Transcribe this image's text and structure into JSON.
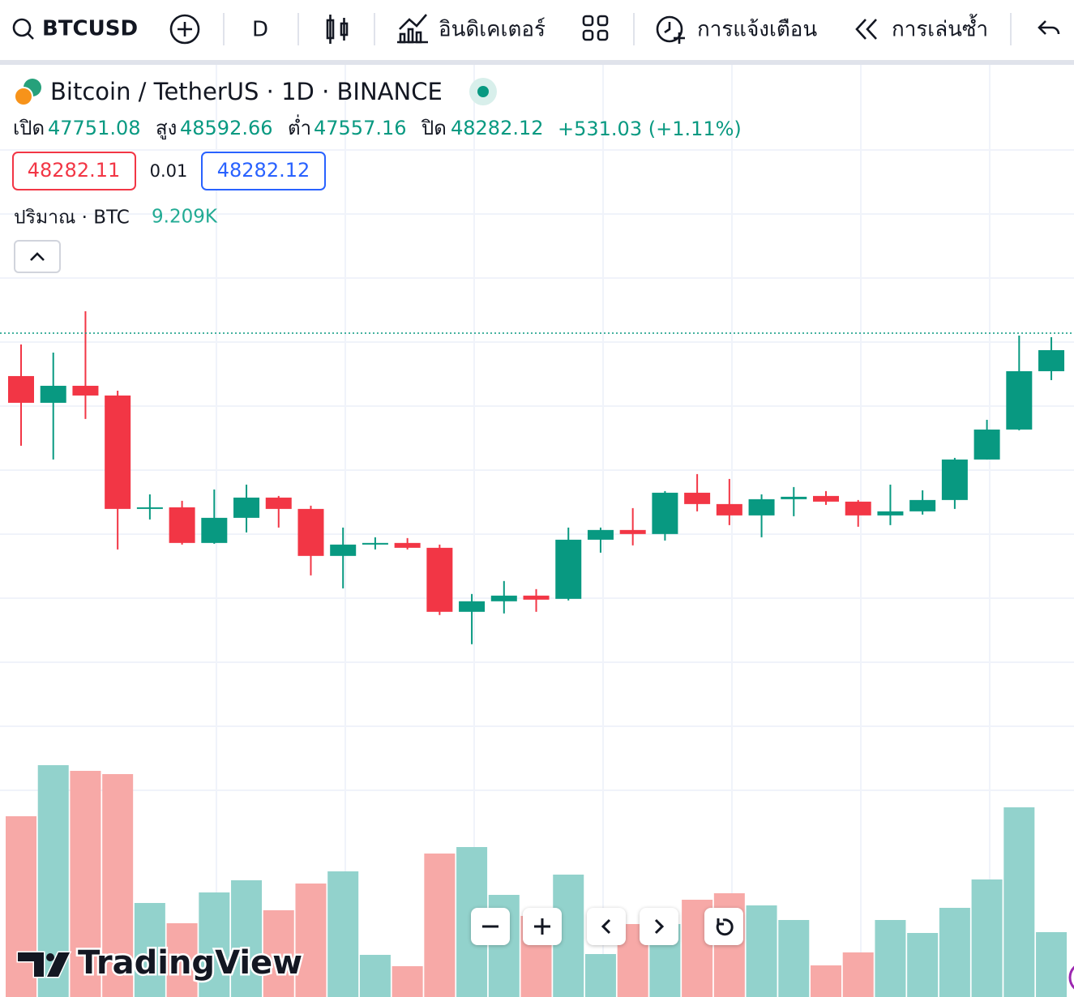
{
  "toolbar": {
    "symbol": "BTCUSD",
    "interval": "D",
    "indicators": "อินดิเคเตอร์",
    "alerts": "การแจ้งเตือน",
    "replay": "การเล่นซ้ำ"
  },
  "legend": {
    "title": "Bitcoin / TetherUS · 1D · BINANCE",
    "open_label": "เปิด",
    "open": 47751.08,
    "high_label": "สูง",
    "high": 48592.66,
    "low_label": "ต่ำ",
    "low": 47557.16,
    "close_label": "ปิด",
    "close": 48282.12,
    "change": "+531.03 (+1.11%)",
    "bid": 48282.11,
    "spread": 0.01,
    "ask": 48282.12,
    "volume_label": "ปริมาณ · BTC",
    "volume": "9.209K"
  },
  "watermark": "TradingView",
  "chart_data": {
    "type": "candlestick",
    "ylim": [
      36000,
      50000
    ],
    "volume_ylim": [
      0,
      80000
    ],
    "grid": true,
    "up_color": "#089981",
    "down_color": "#f23645",
    "volume_up_color": "#92d2cc",
    "volume_down_color": "#f7a9a7",
    "open": [
      46957,
      46132,
      46657,
      46357,
      42857,
      42907,
      41807,
      42582,
      43207,
      42857,
      41407,
      41757,
      41807,
      41657,
      39682,
      40007,
      40182,
      40082,
      41907,
      42207,
      42082,
      43357,
      43007,
      42657,
      43157,
      43257,
      43082,
      42657,
      42782,
      43132,
      44382,
      45307,
      47107
    ],
    "close": [
      46132,
      46657,
      46357,
      42857,
      42907,
      41807,
      42582,
      43207,
      42857,
      41407,
      41757,
      41807,
      41657,
      39682,
      40007,
      40182,
      40057,
      41907,
      42207,
      42082,
      43357,
      43007,
      42657,
      43157,
      43232,
      43082,
      42657,
      42782,
      43132,
      44382,
      45307,
      47107,
      47757
    ],
    "high": [
      47932,
      47682,
      48957,
      46507,
      43307,
      43107,
      43457,
      43607,
      43257,
      42957,
      42282,
      41982,
      41957,
      41757,
      40232,
      40632,
      40382,
      42282,
      42282,
      42882,
      43407,
      43932,
      43782,
      43307,
      43532,
      43407,
      43132,
      43607,
      43432,
      44432,
      45607,
      48207,
      48157
    ],
    "low": [
      44807,
      44382,
      45632,
      41607,
      42532,
      41757,
      41782,
      42132,
      42282,
      40807,
      40407,
      41607,
      41607,
      39582,
      38682,
      39632,
      39682,
      40032,
      41507,
      41732,
      41882,
      42782,
      42357,
      41982,
      42632,
      42982,
      42307,
      42357,
      42682,
      42857,
      44382,
      45282,
      46832
    ],
    "volume": [
      55750,
      71500,
      69750,
      68750,
      29000,
      22750,
      32250,
      36000,
      26750,
      35000,
      38750,
      13000,
      9500,
      44250,
      46250,
      31500,
      25000,
      37750,
      13250,
      22500,
      22500,
      30000,
      32000,
      28250,
      23750,
      9750,
      13750,
      23750,
      19750,
      27500,
      36250,
      58500,
      20000
    ]
  }
}
